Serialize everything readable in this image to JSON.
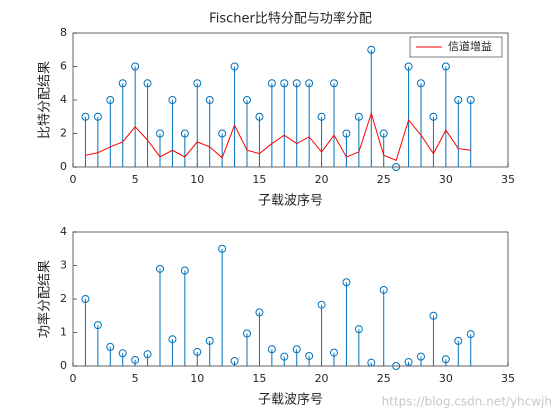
{
  "chart_data": [
    {
      "type": "stem",
      "title": "Fischer比特分配与功率分配",
      "xlabel": "子载波序号",
      "ylabel": "比特分配结果",
      "x": [
        1,
        2,
        3,
        4,
        5,
        6,
        7,
        8,
        9,
        10,
        11,
        12,
        13,
        14,
        15,
        16,
        17,
        18,
        19,
        20,
        21,
        22,
        23,
        24,
        25,
        26,
        27,
        28,
        29,
        30,
        31,
        32
      ],
      "series": [
        {
          "type": "stem",
          "color": "#0072bd",
          "values": [
            3,
            3,
            4,
            5,
            6,
            5,
            2,
            4,
            2,
            5,
            4,
            2,
            6,
            4,
            3,
            5,
            5,
            5,
            5,
            3,
            5,
            2,
            3,
            7,
            2,
            0,
            6,
            5,
            3,
            6,
            4,
            4
          ]
        },
        {
          "type": "line",
          "name": "信道增益",
          "color": "#ff0000",
          "values": [
            0.7,
            0.85,
            1.2,
            1.5,
            2.4,
            1.6,
            0.6,
            1.0,
            0.6,
            1.5,
            1.2,
            0.55,
            2.5,
            1.0,
            0.8,
            1.4,
            1.9,
            1.4,
            1.8,
            0.9,
            1.9,
            0.6,
            0.9,
            3.2,
            0.7,
            0.4,
            2.8,
            1.9,
            0.8,
            2.2,
            1.1,
            1.0
          ]
        }
      ],
      "xlim": [
        0,
        35
      ],
      "xticks": [
        0,
        5,
        10,
        15,
        20,
        25,
        30,
        35
      ],
      "ylim": [
        0,
        8
      ],
      "yticks": [
        0,
        2,
        4,
        6,
        8
      ],
      "legend": "northeast"
    },
    {
      "type": "stem",
      "xlabel": "子载波序号",
      "ylabel": "功率分配结果",
      "x": [
        1,
        2,
        3,
        4,
        5,
        6,
        7,
        8,
        9,
        10,
        11,
        12,
        13,
        14,
        15,
        16,
        17,
        18,
        19,
        20,
        21,
        22,
        23,
        24,
        25,
        26,
        27,
        28,
        29,
        30,
        31,
        32
      ],
      "series": [
        {
          "type": "stem",
          "color": "#0072bd",
          "values": [
            2.0,
            1.22,
            0.57,
            0.38,
            0.18,
            0.35,
            2.9,
            0.8,
            2.85,
            0.42,
            0.75,
            3.5,
            0.15,
            0.97,
            1.6,
            0.5,
            0.28,
            0.5,
            0.3,
            1.83,
            0.4,
            2.5,
            1.1,
            0.1,
            2.27,
            0,
            0.12,
            0.28,
            1.5,
            0.2,
            0.75,
            0.95
          ]
        }
      ],
      "xlim": [
        0,
        35
      ],
      "xticks": [
        0,
        5,
        10,
        15,
        20,
        25,
        30,
        35
      ],
      "ylim": [
        0,
        4
      ],
      "yticks": [
        0,
        1,
        2,
        3,
        4
      ]
    }
  ],
  "watermark": "https://blog.csdn.net/yhcwjh"
}
